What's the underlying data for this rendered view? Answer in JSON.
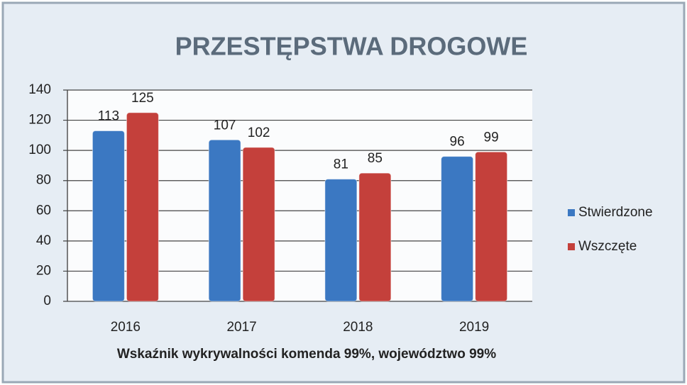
{
  "chart_data": {
    "type": "bar",
    "title": "PRZESTĘPSTWA DROGOWE",
    "footnote": "Wskaźnik  wykrywalności  komenda 99%, województwo 99%",
    "categories": [
      "2016",
      "2017",
      "2018",
      "2019"
    ],
    "series": [
      {
        "name": "Stwierdzone",
        "color": "#3b78c2",
        "values": [
          113,
          107,
          81,
          96
        ]
      },
      {
        "name": "Wszczęte",
        "color": "#c4403b",
        "values": [
          125,
          102,
          85,
          99
        ]
      }
    ],
    "ylim": [
      0,
      140
    ],
    "yticks": [
      0,
      20,
      40,
      60,
      80,
      100,
      120,
      140
    ],
    "grid": true,
    "legend": "right"
  }
}
